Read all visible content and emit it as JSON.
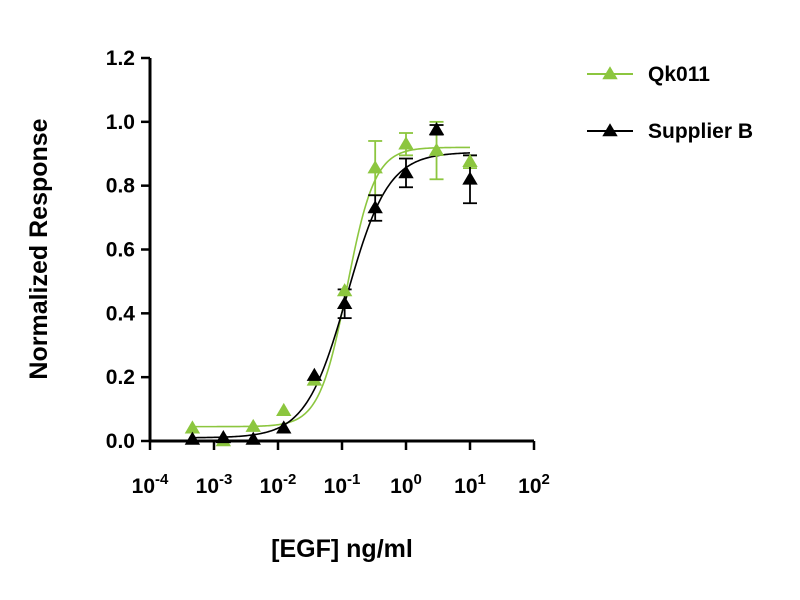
{
  "chart_data": {
    "type": "scatter",
    "title": "",
    "xlabel": "[EGF] ng/ml",
    "ylabel": "Normalized Response",
    "xscale": "log",
    "xlim": [
      0.0001,
      100
    ],
    "ylim": [
      0.0,
      1.2
    ],
    "xticks": [
      {
        "value": 0.0001,
        "base": "10",
        "exp": "-4"
      },
      {
        "value": 0.001,
        "base": "10",
        "exp": "-3"
      },
      {
        "value": 0.01,
        "base": "10",
        "exp": "-2"
      },
      {
        "value": 0.1,
        "base": "10",
        "exp": "-1"
      },
      {
        "value": 1,
        "base": "10",
        "exp": "0"
      },
      {
        "value": 10,
        "base": "10",
        "exp": "1"
      },
      {
        "value": 100,
        "base": "10",
        "exp": "2"
      }
    ],
    "yticks": [
      {
        "value": 0.0,
        "label": "0.0"
      },
      {
        "value": 0.2,
        "label": "0.2"
      },
      {
        "value": 0.4,
        "label": "0.4"
      },
      {
        "value": 0.6,
        "label": "0.6"
      },
      {
        "value": 0.8,
        "label": "0.8"
      },
      {
        "value": 1.0,
        "label": "1.0"
      },
      {
        "value": 1.2,
        "label": "1.2"
      }
    ],
    "grid": false,
    "legend_position": "top-right",
    "series": [
      {
        "name": "Qk011",
        "color": "#8cc63f",
        "marker": "triangle",
        "x": [
          0.00046,
          0.0014,
          0.0041,
          0.0123,
          0.037,
          0.11,
          0.33,
          1.0,
          3.0,
          10.0
        ],
        "y": [
          0.04,
          0.0,
          0.045,
          0.095,
          0.19,
          0.47,
          0.855,
          0.93,
          0.91,
          0.875
        ],
        "yerr": [
          0,
          0,
          0,
          0,
          0,
          0,
          0.085,
          0.035,
          0.09,
          0.02
        ],
        "fit": {
          "bottom": 0.045,
          "top": 0.92,
          "ec50": 0.12,
          "hill": 2.0
        }
      },
      {
        "name": "Supplier B",
        "color": "#000000",
        "marker": "triangle",
        "x": [
          0.00046,
          0.0014,
          0.0041,
          0.0123,
          0.037,
          0.11,
          0.33,
          1.0,
          3.0,
          10.0
        ],
        "y": [
          0.005,
          0.01,
          0.005,
          0.04,
          0.205,
          0.43,
          0.73,
          0.84,
          0.975,
          0.82
        ],
        "yerr": [
          0,
          0,
          0,
          0,
          0,
          0.045,
          0.04,
          0.045,
          0.015,
          0.075
        ],
        "fit": {
          "bottom": 0.01,
          "top": 0.905,
          "ec50": 0.12,
          "hill": 1.35
        }
      }
    ]
  }
}
